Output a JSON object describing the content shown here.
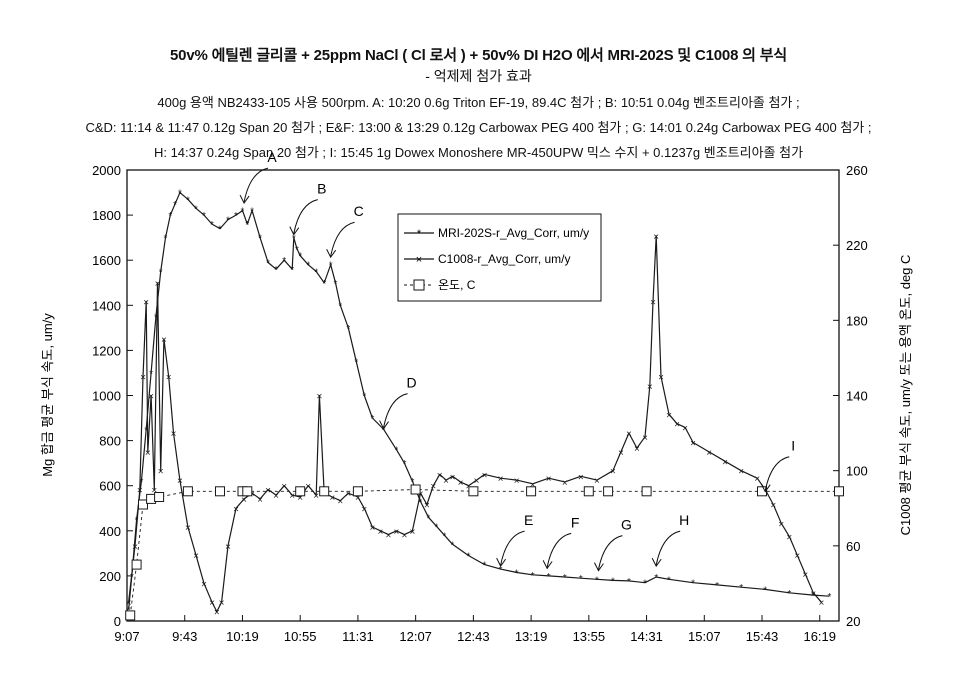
{
  "title": "50v% 에틸렌 글리콜 + 25ppm NaCl ( Cl 로서 ) + 50v% DI H2O 에서 MRI-202S 및 C1008 의 부식",
  "title_line2": "- 억제제 첨가 효과",
  "subtitle_lines": [
    "400g 용액 NB2433-105 사용 500rpm. A: 10:20 0.6g Triton EF-19, 89.4C 첨가 ; B: 10:51 0.04g 벤조트리아졸 첨가 ;",
    "C&D: 11:14 & 11:47 0.12g Span 20 첨가 ; E&F: 13:00 & 13:29 0.12g Carbowax PEG 400 첨가 ; G: 14:01 0.24g Carbowax PEG 400 첨가 ;",
    "H: 14:37 0.24g Span 20 첨가 ; I: 15:45 1g Dowex Monoshere MR-450UPW 믹스 수지 + 0.1237g 벤조트리아졸 첨가"
  ],
  "colors": {
    "line": "#1a1a1a",
    "axis": "#111111",
    "background": "#ffffff"
  },
  "chart_data": {
    "type": "line",
    "ylabel": "Mg 합금 평균 부식 속도, um/y",
    "y2label": "C1008 평균 부식 속도, um/y 또는 용액 온도, deg C",
    "x_ticks": [
      "9:07",
      "9:43",
      "10:19",
      "10:55",
      "11:31",
      "12:07",
      "12:43",
      "13:19",
      "13:55",
      "14:31",
      "15:07",
      "15:43",
      "16:19"
    ],
    "xlim": [
      "9:07",
      "16:31"
    ],
    "ylim": [
      0,
      2000
    ],
    "y_ticks": [
      0,
      200,
      400,
      600,
      800,
      1000,
      1200,
      1400,
      1600,
      1800,
      2000
    ],
    "y2lim": [
      20,
      260
    ],
    "y2_ticks": [
      20,
      60,
      100,
      140,
      180,
      220,
      260
    ],
    "legend": {
      "position": "center-right",
      "entries": [
        "MRI-202S-r_Avg_Corr, um/y",
        "C1008-r_Avg_Corr, um/y",
        "온도, C"
      ]
    },
    "series": [
      {
        "name": "MRI-202S-r_Avg_Corr, um/y",
        "axis": "left",
        "points": [
          [
            "9:08",
            50
          ],
          [
            "9:10",
            200
          ],
          [
            "9:13",
            450
          ],
          [
            "9:16",
            620
          ],
          [
            "9:19",
            850
          ],
          [
            "9:22",
            1100
          ],
          [
            "9:25",
            1350
          ],
          [
            "9:28",
            1550
          ],
          [
            "9:31",
            1700
          ],
          [
            "9:34",
            1800
          ],
          [
            "9:37",
            1850
          ],
          [
            "9:40",
            1900
          ],
          [
            "9:45",
            1870
          ],
          [
            "9:50",
            1830
          ],
          [
            "9:55",
            1800
          ],
          [
            "10:00",
            1760
          ],
          [
            "10:05",
            1740
          ],
          [
            "10:10",
            1780
          ],
          [
            "10:15",
            1800
          ],
          [
            "10:19",
            1820
          ],
          [
            "10:22",
            1760
          ],
          [
            "10:25",
            1820
          ],
          [
            "10:30",
            1700
          ],
          [
            "10:35",
            1590
          ],
          [
            "10:40",
            1560
          ],
          [
            "10:45",
            1600
          ],
          [
            "10:50",
            1560
          ],
          [
            "10:51",
            1700
          ],
          [
            "10:53",
            1650
          ],
          [
            "10:55",
            1620
          ],
          [
            "11:00",
            1580
          ],
          [
            "11:05",
            1550
          ],
          [
            "11:10",
            1500
          ],
          [
            "11:14",
            1580
          ],
          [
            "11:17",
            1500
          ],
          [
            "11:20",
            1400
          ],
          [
            "11:25",
            1300
          ],
          [
            "11:30",
            1150
          ],
          [
            "11:35",
            1000
          ],
          [
            "11:40",
            900
          ],
          [
            "11:47",
            850
          ],
          [
            "11:55",
            760
          ],
          [
            "12:00",
            700
          ],
          [
            "12:05",
            620
          ],
          [
            "12:10",
            530
          ],
          [
            "12:15",
            460
          ],
          [
            "12:20",
            420
          ],
          [
            "12:25",
            380
          ],
          [
            "12:30",
            340
          ],
          [
            "12:40",
            290
          ],
          [
            "12:50",
            250
          ],
          [
            "13:00",
            230
          ],
          [
            "13:10",
            215
          ],
          [
            "13:20",
            205
          ],
          [
            "13:30",
            200
          ],
          [
            "13:40",
            195
          ],
          [
            "13:50",
            190
          ],
          [
            "14:00",
            185
          ],
          [
            "14:10",
            180
          ],
          [
            "14:20",
            178
          ],
          [
            "14:30",
            170
          ],
          [
            "14:37",
            195
          ],
          [
            "14:45",
            185
          ],
          [
            "15:00",
            170
          ],
          [
            "15:15",
            160
          ],
          [
            "15:30",
            150
          ],
          [
            "15:45",
            140
          ],
          [
            "16:00",
            125
          ],
          [
            "16:15",
            115
          ],
          [
            "16:25",
            110
          ]
        ]
      },
      {
        "name": "C1008-r_Avg_Corr, um/y",
        "axis": "right",
        "points": [
          [
            "9:08",
            30
          ],
          [
            "9:12",
            60
          ],
          [
            "9:15",
            90
          ],
          [
            "9:17",
            150
          ],
          [
            "9:19",
            190
          ],
          [
            "9:20",
            110
          ],
          [
            "9:22",
            140
          ],
          [
            "9:24",
            90
          ],
          [
            "9:26",
            200
          ],
          [
            "9:28",
            100
          ],
          [
            "9:30",
            170
          ],
          [
            "9:33",
            150
          ],
          [
            "9:36",
            120
          ],
          [
            "9:40",
            95
          ],
          [
            "9:45",
            70
          ],
          [
            "9:50",
            55
          ],
          [
            "9:55",
            40
          ],
          [
            "10:00",
            30
          ],
          [
            "10:03",
            25
          ],
          [
            "10:06",
            30
          ],
          [
            "10:10",
            60
          ],
          [
            "10:15",
            80
          ],
          [
            "10:20",
            85
          ],
          [
            "10:25",
            88
          ],
          [
            "10:30",
            85
          ],
          [
            "10:35",
            90
          ],
          [
            "10:40",
            87
          ],
          [
            "10:45",
            92
          ],
          [
            "10:50",
            87
          ],
          [
            "10:55",
            86
          ],
          [
            "11:00",
            92
          ],
          [
            "11:05",
            87
          ],
          [
            "11:07",
            140
          ],
          [
            "11:10",
            88
          ],
          [
            "11:15",
            86
          ],
          [
            "11:20",
            84
          ],
          [
            "11:25",
            88
          ],
          [
            "11:31",
            86
          ],
          [
            "11:35",
            80
          ],
          [
            "11:40",
            70
          ],
          [
            "11:45",
            68
          ],
          [
            "11:50",
            66
          ],
          [
            "11:55",
            68
          ],
          [
            "12:00",
            66
          ],
          [
            "12:05",
            68
          ],
          [
            "12:10",
            88
          ],
          [
            "12:14",
            82
          ],
          [
            "12:18",
            92
          ],
          [
            "12:22",
            98
          ],
          [
            "12:26",
            95
          ],
          [
            "12:30",
            97
          ],
          [
            "12:35",
            94
          ],
          [
            "12:40",
            92
          ],
          [
            "12:45",
            95
          ],
          [
            "12:50",
            98
          ],
          [
            "13:00",
            96
          ],
          [
            "13:10",
            95
          ],
          [
            "13:20",
            93
          ],
          [
            "13:30",
            96
          ],
          [
            "13:40",
            94
          ],
          [
            "13:50",
            97
          ],
          [
            "14:00",
            95
          ],
          [
            "14:10",
            100
          ],
          [
            "14:15",
            110
          ],
          [
            "14:20",
            120
          ],
          [
            "14:25",
            112
          ],
          [
            "14:30",
            118
          ],
          [
            "14:33",
            145
          ],
          [
            "14:35",
            190
          ],
          [
            "14:37",
            225
          ],
          [
            "14:40",
            150
          ],
          [
            "14:45",
            130
          ],
          [
            "14:50",
            125
          ],
          [
            "14:55",
            123
          ],
          [
            "15:00",
            115
          ],
          [
            "15:10",
            110
          ],
          [
            "15:20",
            105
          ],
          [
            "15:30",
            100
          ],
          [
            "15:40",
            96
          ],
          [
            "15:45",
            90
          ],
          [
            "15:50",
            82
          ],
          [
            "15:55",
            72
          ],
          [
            "16:00",
            65
          ],
          [
            "16:05",
            55
          ],
          [
            "16:10",
            45
          ],
          [
            "16:15",
            35
          ],
          [
            "16:20",
            30
          ]
        ]
      },
      {
        "name": "온도, C",
        "axis": "right",
        "points": [
          [
            "9:09",
            23
          ],
          [
            "9:13",
            50
          ],
          [
            "9:17",
            82
          ],
          [
            "9:22",
            85
          ],
          [
            "9:27",
            86
          ],
          [
            "9:45",
            89
          ],
          [
            "10:05",
            89
          ],
          [
            "10:19",
            89
          ],
          [
            "10:22",
            89
          ],
          [
            "10:55",
            89
          ],
          [
            "11:10",
            89
          ],
          [
            "11:31",
            89
          ],
          [
            "12:07",
            90
          ],
          [
            "12:43",
            89
          ],
          [
            "13:19",
            89
          ],
          [
            "13:55",
            89
          ],
          [
            "14:07",
            89
          ],
          [
            "14:31",
            89
          ],
          [
            "15:43",
            89
          ],
          [
            "16:31",
            89
          ]
        ]
      }
    ],
    "annotations": [
      {
        "label": "A",
        "x": "10:20",
        "y": 1840
      },
      {
        "label": "B",
        "x": "10:51",
        "y": 1700
      },
      {
        "label": "C",
        "x": "11:14",
        "y": 1600
      },
      {
        "label": "D",
        "x": "11:47",
        "y": 840
      },
      {
        "label": "E",
        "x": "13:00",
        "y": 230
      },
      {
        "label": "F",
        "x": "13:29",
        "y": 220
      },
      {
        "label": "G",
        "x": "14:01",
        "y": 210
      },
      {
        "label": "H",
        "x": "14:37",
        "y": 230
      },
      {
        "label": "I",
        "x": "15:45",
        "y": 560
      }
    ]
  }
}
